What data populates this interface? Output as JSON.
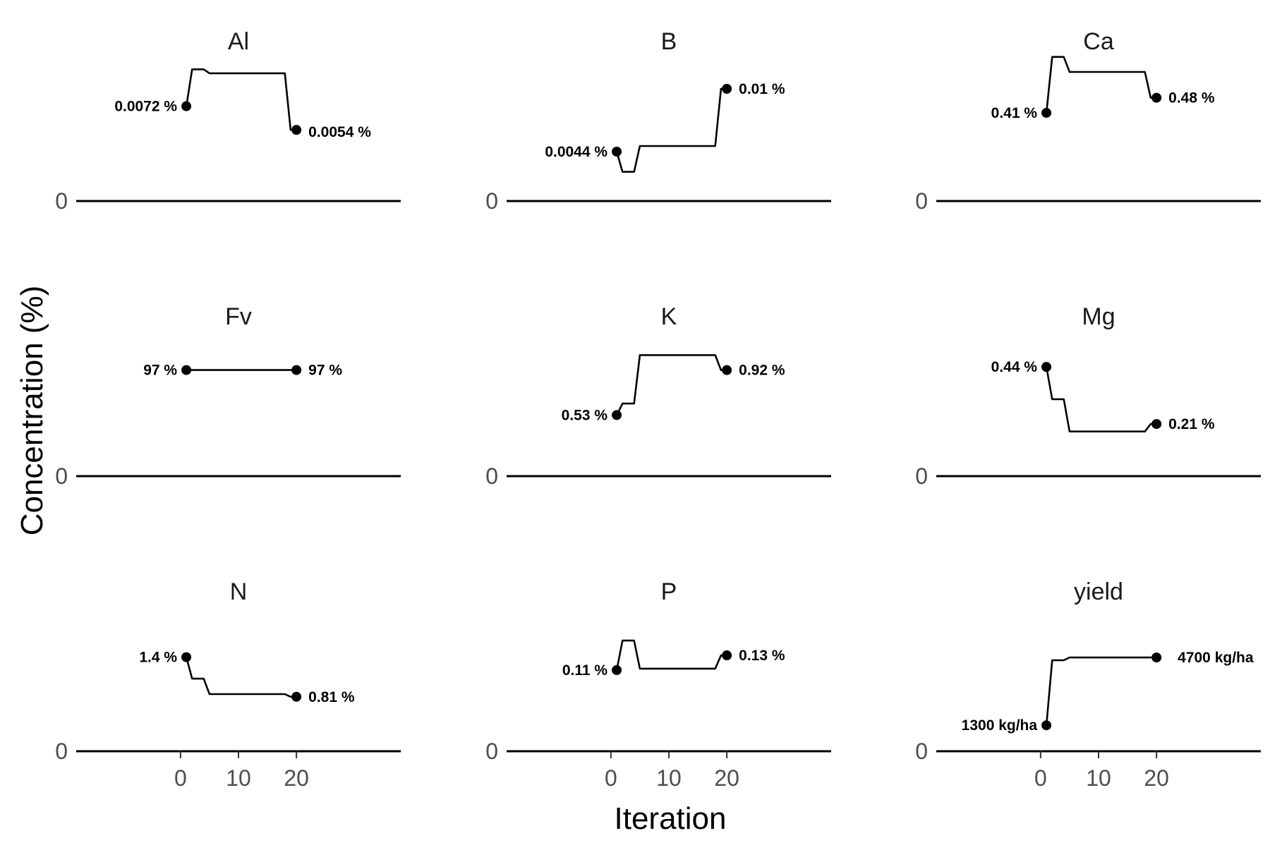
{
  "chart_data": {
    "type": "line",
    "facet_layout": "3x3",
    "xlabel": "Iteration",
    "ylabel": "Concentration (%)",
    "x_ticks": [
      0,
      10,
      20
    ],
    "xlim": [
      -18,
      38
    ],
    "y_tick": "0",
    "grid": false,
    "legend": "none",
    "colors": {
      "line": "#000000",
      "baseline": "#000000",
      "tick_text": "#4d4d4d"
    },
    "facets": [
      {
        "name": "Al",
        "ylim": [
          0,
          0.0098
        ],
        "x": [
          1,
          2,
          4,
          5,
          18,
          19,
          20
        ],
        "y": [
          0.0072,
          0.01,
          0.01,
          0.0097,
          0.0097,
          0.0054,
          0.0054
        ],
        "start_label": "0.0072 %",
        "end_label": "0.0054 %"
      },
      {
        "name": "B",
        "ylim": [
          0,
          0.0115
        ],
        "x": [
          1,
          2,
          4,
          5,
          18,
          19,
          20
        ],
        "y": [
          0.0044,
          0.0026,
          0.0026,
          0.0049,
          0.0049,
          0.01,
          0.01
        ],
        "start_label": "0.0044 %",
        "end_label": "0.01 %"
      },
      {
        "name": "Ca",
        "ylim": [
          0,
          0.6
        ],
        "x": [
          1,
          2,
          4,
          5,
          18,
          19,
          20
        ],
        "y": [
          0.41,
          0.67,
          0.67,
          0.6,
          0.6,
          0.48,
          0.48
        ],
        "start_label": "0.41 %",
        "end_label": "0.48 %"
      },
      {
        "name": "Fv",
        "ylim": [
          0,
          118
        ],
        "x": [
          1,
          20
        ],
        "y": [
          97,
          97
        ],
        "start_label": "97 %",
        "end_label": "97 %"
      },
      {
        "name": "K",
        "ylim": [
          0,
          1.12
        ],
        "x": [
          1,
          2,
          4,
          5,
          18,
          19,
          20
        ],
        "y": [
          0.53,
          0.63,
          0.63,
          1.05,
          1.05,
          0.92,
          0.92
        ],
        "start_label": "0.53 %",
        "end_label": "0.92 %"
      },
      {
        "name": "Mg",
        "ylim": [
          0,
          0.52
        ],
        "x": [
          1,
          2,
          4,
          5,
          18,
          19,
          20
        ],
        "y": [
          0.44,
          0.31,
          0.31,
          0.18,
          0.18,
          0.21,
          0.21
        ],
        "start_label": "0.44 %",
        "end_label": "0.21 %"
      },
      {
        "name": "N",
        "ylim": [
          0,
          1.92
        ],
        "x": [
          1,
          2,
          4,
          5,
          18,
          19,
          20
        ],
        "y": [
          1.4,
          1.08,
          1.08,
          0.85,
          0.85,
          0.81,
          0.81
        ],
        "start_label": "1.4 %",
        "end_label": "0.81 %"
      },
      {
        "name": "P",
        "ylim": [
          0,
          0.175
        ],
        "x": [
          1,
          2,
          4,
          5,
          18,
          19,
          20
        ],
        "y": [
          0.11,
          0.15,
          0.15,
          0.112,
          0.112,
          0.13,
          0.13
        ],
        "start_label": "0.11 %",
        "end_label": "0.13 %"
      },
      {
        "name": "yield",
        "ylim": [
          0,
          6470
        ],
        "x": [
          1,
          2,
          4,
          5,
          18,
          19,
          20
        ],
        "y": [
          1300,
          4560,
          4560,
          4700,
          4700,
          4700,
          4700
        ],
        "start_label": "1300 kg/ha",
        "end_label": "4700 kg/ha"
      }
    ]
  }
}
